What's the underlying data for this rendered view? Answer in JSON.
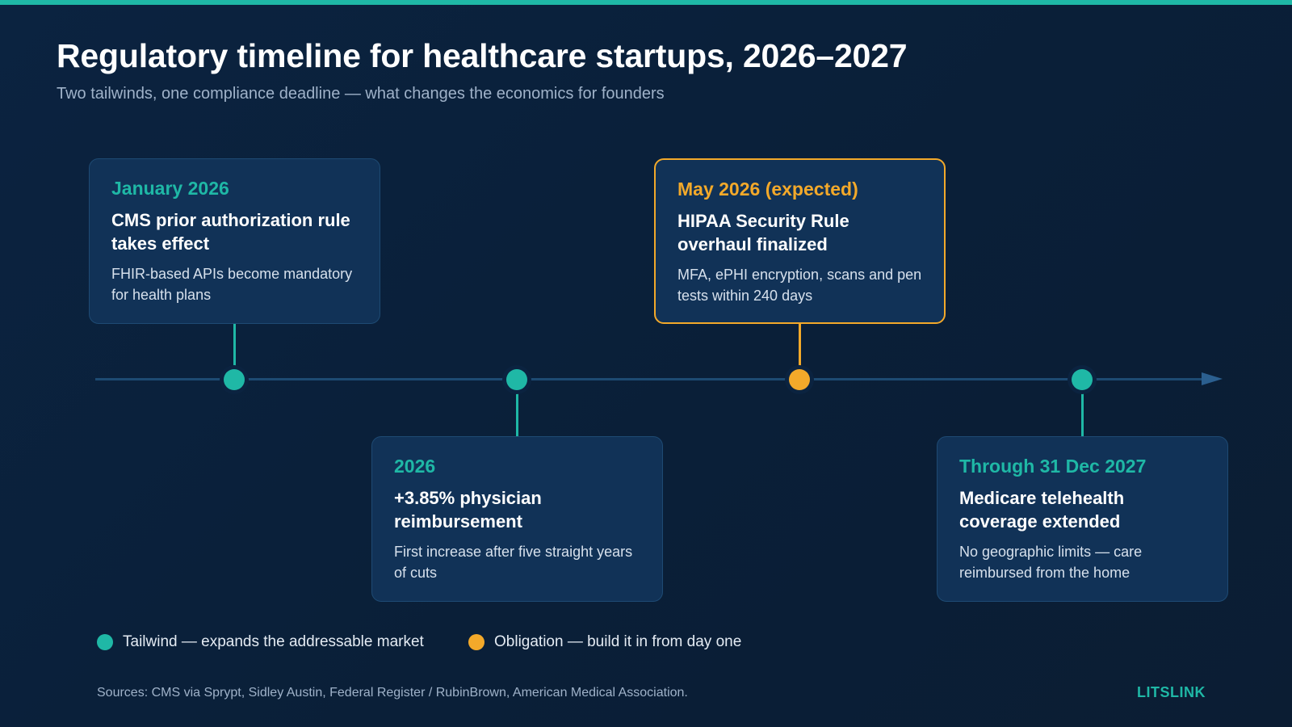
{
  "header": {
    "title": "Regulatory timeline for healthcare startups, 2026–2027",
    "subtitle": "Two tailwinds, one compliance deadline — what changes the economics for founders"
  },
  "colors": {
    "background": "#0b2340",
    "tailwind": "#1fb8a6",
    "obligation": "#f3a92a",
    "card": "#113257",
    "axis": "#1d4a72"
  },
  "events": [
    {
      "kind": "tailwind",
      "position": "above",
      "date": "January 2026",
      "headline": "CMS prior authorization rule takes effect",
      "description": "FHIR-based APIs become mandatory for health plans"
    },
    {
      "kind": "tailwind",
      "position": "below",
      "date": "2026",
      "headline": "+3.85% physician reimbursement",
      "description": "First increase after five straight years of cuts"
    },
    {
      "kind": "obligation",
      "position": "above",
      "date": "May 2026 (expected)",
      "headline": "HIPAA Security Rule overhaul finalized",
      "description": "MFA, ePHI encryption, scans and pen tests within 240 days"
    },
    {
      "kind": "tailwind",
      "position": "below",
      "date": "Through 31 Dec 2027",
      "headline": "Medicare telehealth coverage extended",
      "description": "No geographic limits — care reimbursed from the home"
    }
  ],
  "legend": {
    "tailwind": "Tailwind — expands the addressable market",
    "obligation": "Obligation — build it in from day one"
  },
  "footer": {
    "sources": "Sources: CMS via Sprypt, Sidley Austin, Federal Register / RubinBrown, American Medical Association.",
    "brand": "LITSLINK"
  }
}
